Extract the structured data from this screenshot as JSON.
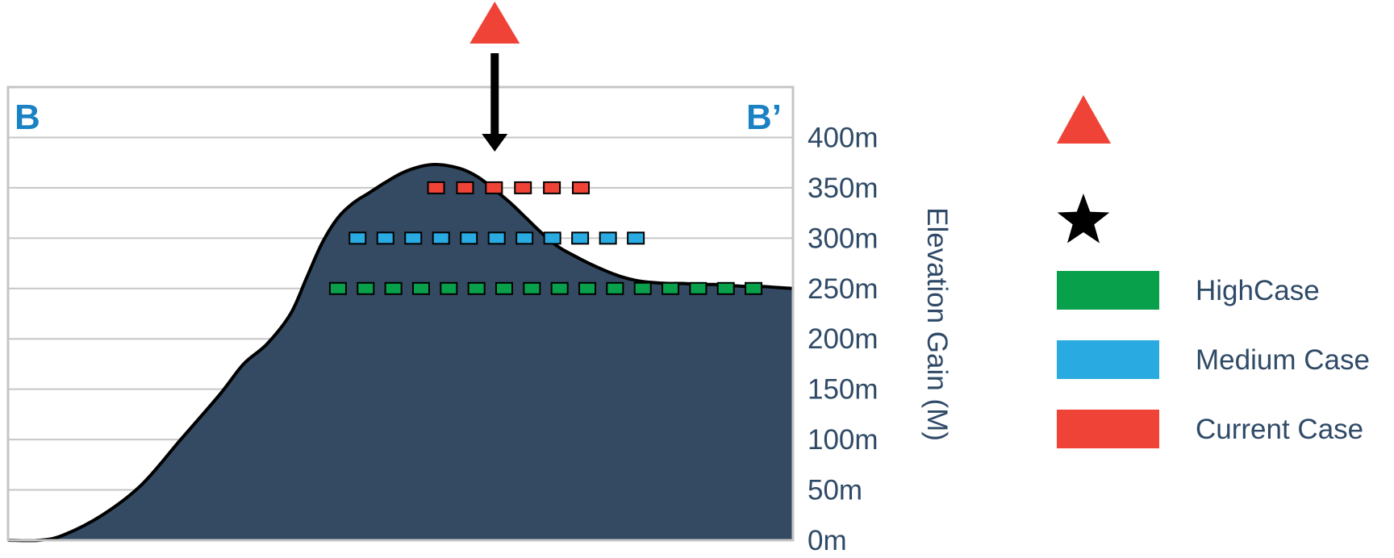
{
  "chart_data": {
    "type": "area",
    "corner_labels": {
      "left": "B",
      "right": "B’"
    },
    "ylabel": "Elevation Gain (M)",
    "ylim": [
      0,
      450
    ],
    "y_ticks": [
      "0m",
      "50m",
      "100m",
      "150m",
      "200m",
      "250m",
      "300m",
      "350m",
      "400m"
    ],
    "grid": true,
    "profile": {
      "x": [
        0,
        4,
        7,
        12,
        17,
        22,
        27,
        30,
        33,
        36,
        38,
        40,
        42,
        44,
        46,
        48,
        50,
        52,
        54,
        56,
        58,
        60,
        62,
        64,
        66,
        68,
        70,
        72,
        74,
        76,
        78,
        80,
        82,
        84,
        86,
        88,
        90,
        92,
        94,
        96,
        98,
        100
      ],
      "elevation": [
        0,
        0,
        5,
        25,
        55,
        100,
        145,
        175,
        195,
        225,
        260,
        295,
        320,
        335,
        345,
        355,
        364,
        370,
        373,
        372,
        368,
        360,
        348,
        335,
        320,
        305,
        292,
        283,
        275,
        268,
        262,
        258,
        256,
        255,
        255,
        254,
        254,
        253,
        252,
        252,
        251,
        250
      ]
    },
    "series": [
      {
        "name": "HighCase",
        "color": "#08a04b",
        "elevation": 250,
        "x_range": [
          41,
          96
        ]
      },
      {
        "name": "Medium Case",
        "color": "#29abe2",
        "elevation": 300,
        "x_range": [
          43.5,
          81
        ]
      },
      {
        "name": "Current Case",
        "color": "#ee4336",
        "elevation": 350,
        "x_range": [
          53.5,
          74
        ]
      }
    ],
    "peak": {
      "x": 62,
      "elevation": 375,
      "marker_color": "#ee4336"
    },
    "legend": {
      "placement": "right",
      "items": [
        {
          "symbol": "triangle",
          "color": "#ee4336",
          "label": ""
        },
        {
          "symbol": "star",
          "color": "#000000",
          "label": ""
        },
        {
          "symbol": "swatch",
          "color": "#08a04b",
          "label": "HighCase"
        },
        {
          "symbol": "swatch",
          "color": "#29abe2",
          "label": "Medium Case"
        },
        {
          "symbol": "swatch",
          "color": "#ee4336",
          "label": "Current Case"
        }
      ]
    },
    "colors": {
      "fill": "#344a62",
      "grid": "#c6c6c6",
      "text": "#2f4a67",
      "corner": "#1a82c4"
    }
  }
}
